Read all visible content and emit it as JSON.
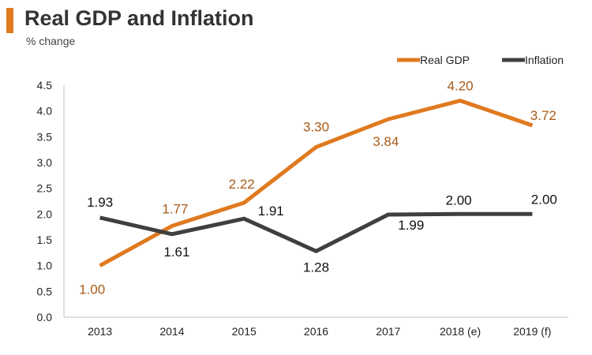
{
  "chart_data": {
    "type": "line",
    "title": "Real GDP and Inflation",
    "subtitle": "% change",
    "categories": [
      "2013",
      "2014",
      "2015",
      "2016",
      "2017",
      "2018 (e)",
      "2019 (f)"
    ],
    "ylim": [
      0,
      4.5
    ],
    "yticks": [
      "0.0",
      "0.5",
      "1.0",
      "1.5",
      "2.0",
      "2.5",
      "3.0",
      "3.5",
      "4.0",
      "4.5"
    ],
    "legend_position": "top-right",
    "series": [
      {
        "name": "Real GDP",
        "color": "#e07a1f",
        "label_color": "#a85a16",
        "values": [
          1.0,
          1.77,
          2.22,
          3.3,
          3.84,
          4.2,
          3.72
        ],
        "labels": [
          "1.00",
          "1.77",
          "2.22",
          "3.30",
          "3.84",
          "4.20",
          "3.72"
        ]
      },
      {
        "name": "Inflation",
        "color": "#3f3f3f",
        "label_color": "#111111",
        "values": [
          1.93,
          1.61,
          1.91,
          1.28,
          1.99,
          2.0,
          2.0
        ],
        "labels": [
          "1.93",
          "1.61",
          "1.91",
          "1.28",
          "1.99",
          "2.00",
          "2.00"
        ]
      }
    ]
  }
}
